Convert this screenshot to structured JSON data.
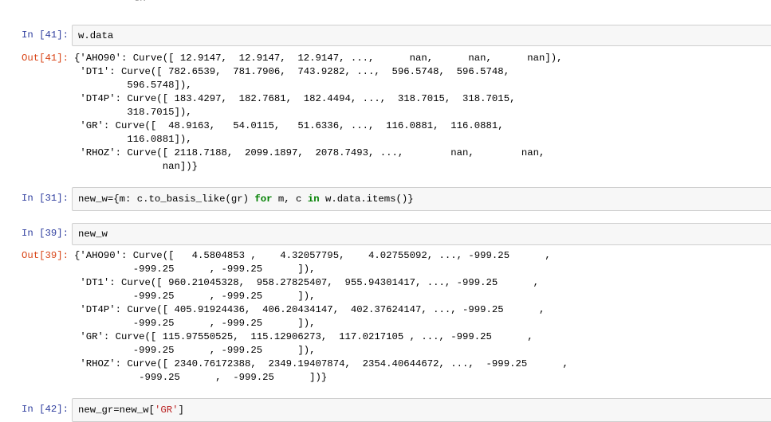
{
  "top_partial_text": "GR",
  "cells": [
    {
      "in_prompt": "In [41]:",
      "code": [
        {
          "t": "w.data",
          "c": ""
        }
      ],
      "out_prompt": "Out[41]:",
      "output_lines": [
        "{'AHO90': Curve([ 12.9147,  12.9147,  12.9147, ...,      nan,      nan,      nan]),",
        " 'DT1': Curve([ 782.6539,  781.7906,  743.9282, ...,  596.5748,  596.5748,",
        "         596.5748]),",
        " 'DT4P': Curve([ 183.4297,  182.7681,  182.4494, ...,  318.7015,  318.7015,",
        "         318.7015]),",
        " 'GR': Curve([  48.9163,   54.0115,   51.6336, ...,  116.0881,  116.0881,",
        "         116.0881]),",
        " 'RHOZ': Curve([ 2118.7188,  2099.1897,  2078.7493, ...,        nan,        nan,",
        "               nan])}"
      ]
    },
    {
      "in_prompt": "In [31]:",
      "code": [
        {
          "t": "new_w={m: c.to_basis_like(gr) ",
          "c": ""
        },
        {
          "t": "for",
          "c": "kw"
        },
        {
          "t": " m, c ",
          "c": ""
        },
        {
          "t": "in",
          "c": "kw"
        },
        {
          "t": " w.data.items()}",
          "c": ""
        }
      ]
    },
    {
      "in_prompt": "In [39]:",
      "code": [
        {
          "t": "new_w",
          "c": ""
        }
      ],
      "out_prompt": "Out[39]:",
      "output_lines": [
        "{'AHO90': Curve([   4.5804853 ,    4.32057795,    4.02755092, ..., -999.25      ,",
        "          -999.25      , -999.25      ]),",
        " 'DT1': Curve([ 960.21045328,  958.27825407,  955.94301417, ..., -999.25      ,",
        "          -999.25      , -999.25      ]),",
        " 'DT4P': Curve([ 405.91924436,  406.20434147,  402.37624147, ..., -999.25      ,",
        "          -999.25      , -999.25      ]),",
        " 'GR': Curve([ 115.97550525,  115.12906273,  117.0217105 , ..., -999.25      ,",
        "          -999.25      , -999.25      ]),",
        " 'RHOZ': Curve([ 2340.76172388,  2349.19407874,  2354.40644672, ...,  -999.25      ,",
        "           -999.25      ,  -999.25      ])}"
      ]
    },
    {
      "in_prompt": "In [42]:",
      "code": [
        {
          "t": "new_gr=new_w[",
          "c": ""
        },
        {
          "t": "'GR'",
          "c": "str"
        },
        {
          "t": "]",
          "c": ""
        }
      ]
    }
  ]
}
